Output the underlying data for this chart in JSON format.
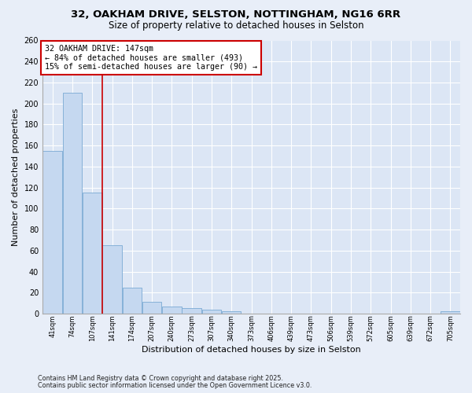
{
  "title1": "32, OAKHAM DRIVE, SELSTON, NOTTINGHAM, NG16 6RR",
  "title2": "Size of property relative to detached houses in Selston",
  "xlabel": "Distribution of detached houses by size in Selston",
  "ylabel": "Number of detached properties",
  "bar_color": "#c5d8f0",
  "bar_edge_color": "#7aaad4",
  "plot_bg_color": "#dce6f5",
  "fig_bg_color": "#e8eef8",
  "grid_color": "#ffffff",
  "categories": [
    "41sqm",
    "74sqm",
    "107sqm",
    "141sqm",
    "174sqm",
    "207sqm",
    "240sqm",
    "273sqm",
    "307sqm",
    "340sqm",
    "373sqm",
    "406sqm",
    "439sqm",
    "473sqm",
    "506sqm",
    "539sqm",
    "572sqm",
    "605sqm",
    "639sqm",
    "672sqm",
    "705sqm"
  ],
  "values": [
    155,
    210,
    115,
    65,
    25,
    11,
    7,
    5,
    4,
    2,
    0,
    0,
    0,
    0,
    0,
    0,
    0,
    0,
    0,
    0,
    2
  ],
  "red_line_x": 2.5,
  "red_line_color": "#cc0000",
  "annotation_line1": "32 OAKHAM DRIVE: 147sqm",
  "annotation_line2": "← 84% of detached houses are smaller (493)",
  "annotation_line3": "15% of semi-detached houses are larger (90) →",
  "annotation_box_facecolor": "#ffffff",
  "annotation_box_edgecolor": "#cc0000",
  "ylim": [
    0,
    260
  ],
  "yticks": [
    0,
    20,
    40,
    60,
    80,
    100,
    120,
    140,
    160,
    180,
    200,
    220,
    240,
    260
  ],
  "footnote1": "Contains HM Land Registry data © Crown copyright and database right 2025.",
  "footnote2": "Contains public sector information licensed under the Open Government Licence v3.0.",
  "title_fontsize": 9.5,
  "subtitle_fontsize": 8.5
}
